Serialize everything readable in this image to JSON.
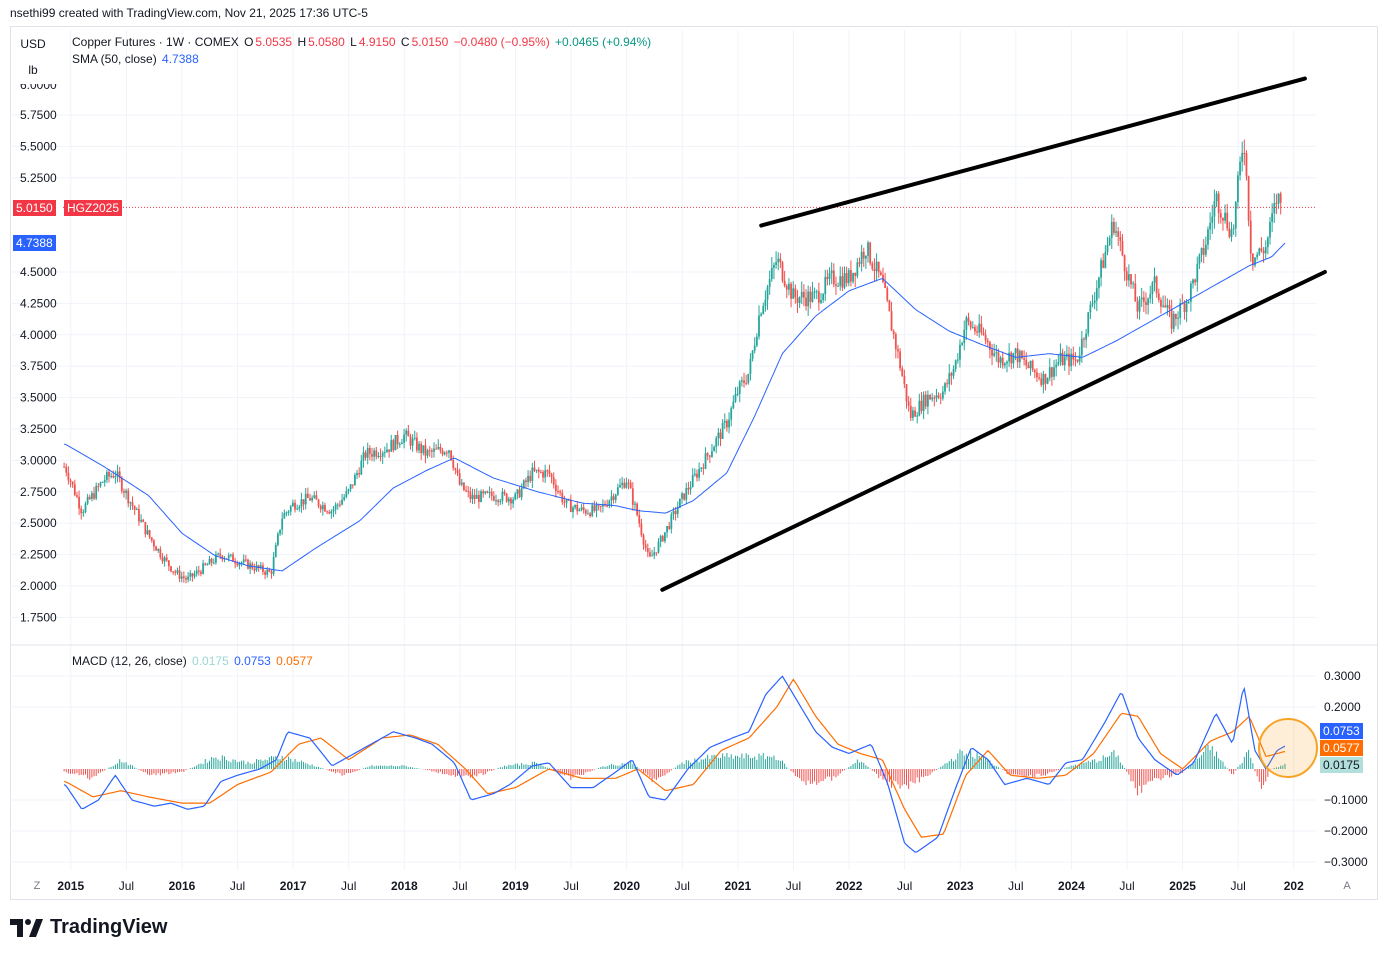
{
  "header": {
    "text": "nsethi99 created with TradingView.com, Nov 21, 2025 17:36 UTC-5"
  },
  "units": {
    "currency": "USD",
    "unit": "lb"
  },
  "legend": {
    "symbol": "Copper Futures · 1W · COMEX",
    "o_label": "O",
    "o_value": "5.0535",
    "h_label": "H",
    "h_value": "5.0580",
    "l_label": "L",
    "l_value": "4.9150",
    "c_label": "C",
    "c_value": "5.0150",
    "change": "−0.0480 (−0.95%)",
    "extra": "+0.0465 (+0.94%)",
    "sma_label": "SMA (50, close)",
    "sma_value": "4.7388"
  },
  "macd_legend": {
    "label": "MACD (12, 26, close)",
    "hist_value": "0.0175",
    "macd_value": "0.0753",
    "signal_value": "0.0577"
  },
  "price_tags": {
    "last": "5.0150",
    "symbol": "HGZ2025",
    "sma": "4.7388",
    "macd": "0.0753",
    "signal": "0.0577",
    "hist": "0.0175"
  },
  "bottom_left_btn": "Z",
  "bottom_right_btn": "A",
  "footer": {
    "logo_text": "TradingView"
  },
  "colors": {
    "up": "#26a69a",
    "down": "#ef5350",
    "sma": "#2962ff",
    "macd": "#2962ff",
    "signal": "#ff6d00",
    "hist_up": "#26a69a",
    "hist_down": "#ef5350",
    "trendline": "#000000",
    "last_price": "#f23645",
    "highlight": "#f7a325"
  },
  "chart_data": {
    "type": "candlestick",
    "title": "Copper Futures · 1W · COMEX",
    "price_axis": {
      "ticks": [
        "5.7500",
        "5.5000",
        "5.2500",
        "4.5000",
        "4.2500",
        "4.0000",
        "3.7500",
        "3.5000",
        "3.2500",
        "3.0000",
        "2.7500",
        "2.5000",
        "2.2500",
        "2.0000",
        "1.7500"
      ],
      "ylim": [
        1.62,
        6.0
      ]
    },
    "macd_axis": {
      "ticks": [
        "0.3000",
        "0.2000",
        "-0.1000",
        "-0.2000",
        "-0.3000"
      ],
      "ylim": [
        -0.32,
        0.34
      ]
    },
    "time_axis": {
      "labels": [
        "2015",
        "Jul",
        "2016",
        "Jul",
        "2017",
        "Jul",
        "2018",
        "Jul",
        "2019",
        "Jul",
        "2020",
        "Jul",
        "2021",
        "Jul",
        "2022",
        "Jul",
        "2023",
        "Jul",
        "2024",
        "Jul",
        "2025",
        "Jul",
        "202"
      ],
      "xlim": [
        2014.93,
        2026.2
      ]
    },
    "price_anchors": [
      [
        2014.95,
        2.95
      ],
      [
        2015.1,
        2.6
      ],
      [
        2015.3,
        2.85
      ],
      [
        2015.4,
        2.9
      ],
      [
        2015.55,
        2.65
      ],
      [
        2015.7,
        2.4
      ],
      [
        2015.85,
        2.2
      ],
      [
        2015.95,
        2.1
      ],
      [
        2016.05,
        2.05
      ],
      [
        2016.2,
        2.15
      ],
      [
        2016.35,
        2.25
      ],
      [
        2016.5,
        2.2
      ],
      [
        2016.65,
        2.15
      ],
      [
        2016.8,
        2.1
      ],
      [
        2016.9,
        2.55
      ],
      [
        2017.0,
        2.65
      ],
      [
        2017.15,
        2.7
      ],
      [
        2017.35,
        2.6
      ],
      [
        2017.5,
        2.75
      ],
      [
        2017.65,
        3.05
      ],
      [
        2017.85,
        3.1
      ],
      [
        2018.0,
        3.2
      ],
      [
        2018.2,
        3.05
      ],
      [
        2018.4,
        3.1
      ],
      [
        2018.5,
        2.8
      ],
      [
        2018.6,
        2.7
      ],
      [
        2018.8,
        2.72
      ],
      [
        2019.0,
        2.7
      ],
      [
        2019.15,
        2.9
      ],
      [
        2019.3,
        2.9
      ],
      [
        2019.45,
        2.65
      ],
      [
        2019.6,
        2.6
      ],
      [
        2019.75,
        2.6
      ],
      [
        2019.9,
        2.75
      ],
      [
        2020.0,
        2.85
      ],
      [
        2020.1,
        2.55
      ],
      [
        2020.2,
        2.2
      ],
      [
        2020.3,
        2.35
      ],
      [
        2020.5,
        2.7
      ],
      [
        2020.7,
        3.0
      ],
      [
        2020.9,
        3.3
      ],
      [
        2021.0,
        3.55
      ],
      [
        2021.1,
        3.7
      ],
      [
        2021.2,
        4.2
      ],
      [
        2021.35,
        4.6
      ],
      [
        2021.5,
        4.3
      ],
      [
        2021.7,
        4.3
      ],
      [
        2021.85,
        4.45
      ],
      [
        2022.0,
        4.45
      ],
      [
        2022.15,
        4.7
      ],
      [
        2022.3,
        4.4
      ],
      [
        2022.45,
        3.8
      ],
      [
        2022.55,
        3.35
      ],
      [
        2022.7,
        3.5
      ],
      [
        2022.85,
        3.55
      ],
      [
        2022.95,
        3.75
      ],
      [
        2023.05,
        4.1
      ],
      [
        2023.2,
        4.0
      ],
      [
        2023.35,
        3.8
      ],
      [
        2023.5,
        3.85
      ],
      [
        2023.6,
        3.75
      ],
      [
        2023.75,
        3.65
      ],
      [
        2023.9,
        3.8
      ],
      [
        2024.05,
        3.8
      ],
      [
        2024.2,
        4.3
      ],
      [
        2024.38,
        4.9
      ],
      [
        2024.5,
        4.5
      ],
      [
        2024.6,
        4.2
      ],
      [
        2024.75,
        4.4
      ],
      [
        2024.9,
        4.1
      ],
      [
        2025.05,
        4.3
      ],
      [
        2025.2,
        4.7
      ],
      [
        2025.3,
        5.1
      ],
      [
        2025.45,
        4.8
      ],
      [
        2025.55,
        5.6
      ],
      [
        2025.62,
        4.6
      ],
      [
        2025.75,
        4.7
      ],
      [
        2025.85,
        5.1
      ],
      [
        2025.9,
        5.015
      ]
    ],
    "sma_anchors": [
      [
        2014.95,
        3.13
      ],
      [
        2015.3,
        2.95
      ],
      [
        2015.7,
        2.72
      ],
      [
        2016.0,
        2.42
      ],
      [
        2016.3,
        2.24
      ],
      [
        2016.6,
        2.16
      ],
      [
        2016.9,
        2.12
      ],
      [
        2017.2,
        2.3
      ],
      [
        2017.6,
        2.52
      ],
      [
        2017.9,
        2.78
      ],
      [
        2018.2,
        2.92
      ],
      [
        2018.45,
        3.02
      ],
      [
        2018.8,
        2.86
      ],
      [
        2019.2,
        2.75
      ],
      [
        2019.6,
        2.66
      ],
      [
        2019.9,
        2.64
      ],
      [
        2020.1,
        2.6
      ],
      [
        2020.35,
        2.58
      ],
      [
        2020.6,
        2.68
      ],
      [
        2020.9,
        2.9
      ],
      [
        2021.15,
        3.35
      ],
      [
        2021.4,
        3.85
      ],
      [
        2021.7,
        4.15
      ],
      [
        2022.0,
        4.35
      ],
      [
        2022.3,
        4.45
      ],
      [
        2022.6,
        4.2
      ],
      [
        2022.9,
        4.03
      ],
      [
        2023.2,
        3.92
      ],
      [
        2023.5,
        3.82
      ],
      [
        2023.8,
        3.85
      ],
      [
        2024.1,
        3.82
      ],
      [
        2024.4,
        3.95
      ],
      [
        2024.7,
        4.1
      ],
      [
        2025.0,
        4.25
      ],
      [
        2025.3,
        4.4
      ],
      [
        2025.6,
        4.55
      ],
      [
        2025.8,
        4.62
      ],
      [
        2025.93,
        4.7388
      ]
    ],
    "macd_anchors": [
      [
        2014.95,
        -0.05
      ],
      [
        2015.1,
        -0.13
      ],
      [
        2015.25,
        -0.1
      ],
      [
        2015.4,
        -0.02
      ],
      [
        2015.55,
        -0.1
      ],
      [
        2015.75,
        -0.12
      ],
      [
        2015.9,
        -0.11
      ],
      [
        2016.05,
        -0.13
      ],
      [
        2016.2,
        -0.12
      ],
      [
        2016.35,
        -0.04
      ],
      [
        2016.5,
        -0.02
      ],
      [
        2016.7,
        0.0
      ],
      [
        2016.85,
        0.03
      ],
      [
        2016.95,
        0.12
      ],
      [
        2017.15,
        0.1
      ],
      [
        2017.35,
        0.01
      ],
      [
        2017.55,
        0.05
      ],
      [
        2017.75,
        0.09
      ],
      [
        2017.9,
        0.12
      ],
      [
        2018.1,
        0.1
      ],
      [
        2018.25,
        0.08
      ],
      [
        2018.45,
        0.02
      ],
      [
        2018.6,
        -0.1
      ],
      [
        2018.8,
        -0.08
      ],
      [
        2018.95,
        -0.05
      ],
      [
        2019.15,
        0.01
      ],
      [
        2019.3,
        0.02
      ],
      [
        2019.5,
        -0.06
      ],
      [
        2019.7,
        -0.06
      ],
      [
        2019.9,
        -0.01
      ],
      [
        2020.05,
        0.03
      ],
      [
        2020.2,
        -0.09
      ],
      [
        2020.35,
        -0.1
      ],
      [
        2020.55,
        0.0
      ],
      [
        2020.75,
        0.07
      ],
      [
        2020.95,
        0.1
      ],
      [
        2021.1,
        0.12
      ],
      [
        2021.25,
        0.24
      ],
      [
        2021.4,
        0.3
      ],
      [
        2021.55,
        0.21
      ],
      [
        2021.7,
        0.12
      ],
      [
        2021.85,
        0.07
      ],
      [
        2022.0,
        0.05
      ],
      [
        2022.2,
        0.08
      ],
      [
        2022.35,
        -0.05
      ],
      [
        2022.5,
        -0.24
      ],
      [
        2022.6,
        -0.27
      ],
      [
        2022.8,
        -0.22
      ],
      [
        2022.95,
        -0.07
      ],
      [
        2023.1,
        0.07
      ],
      [
        2023.25,
        0.03
      ],
      [
        2023.4,
        -0.05
      ],
      [
        2023.6,
        -0.03
      ],
      [
        2023.8,
        -0.05
      ],
      [
        2023.95,
        0.02
      ],
      [
        2024.1,
        0.03
      ],
      [
        2024.3,
        0.15
      ],
      [
        2024.45,
        0.25
      ],
      [
        2024.6,
        0.1
      ],
      [
        2024.75,
        0.03
      ],
      [
        2024.95,
        -0.02
      ],
      [
        2025.1,
        0.02
      ],
      [
        2025.3,
        0.18
      ],
      [
        2025.45,
        0.08
      ],
      [
        2025.55,
        0.27
      ],
      [
        2025.65,
        0.06
      ],
      [
        2025.75,
        0.0
      ],
      [
        2025.85,
        0.06
      ],
      [
        2025.93,
        0.0753
      ]
    ],
    "signal_anchors": [
      [
        2014.95,
        -0.04
      ],
      [
        2015.2,
        -0.09
      ],
      [
        2015.45,
        -0.07
      ],
      [
        2015.7,
        -0.09
      ],
      [
        2016.0,
        -0.11
      ],
      [
        2016.25,
        -0.11
      ],
      [
        2016.5,
        -0.05
      ],
      [
        2016.8,
        -0.01
      ],
      [
        2017.05,
        0.08
      ],
      [
        2017.25,
        0.1
      ],
      [
        2017.5,
        0.03
      ],
      [
        2017.8,
        0.1
      ],
      [
        2018.05,
        0.11
      ],
      [
        2018.3,
        0.08
      ],
      [
        2018.55,
        0.0
      ],
      [
        2018.75,
        -0.08
      ],
      [
        2019.0,
        -0.06
      ],
      [
        2019.3,
        0.0
      ],
      [
        2019.6,
        -0.03
      ],
      [
        2019.9,
        -0.03
      ],
      [
        2020.1,
        0.0
      ],
      [
        2020.35,
        -0.07
      ],
      [
        2020.6,
        -0.05
      ],
      [
        2020.85,
        0.06
      ],
      [
        2021.1,
        0.1
      ],
      [
        2021.35,
        0.2
      ],
      [
        2021.5,
        0.29
      ],
      [
        2021.7,
        0.17
      ],
      [
        2021.9,
        0.08
      ],
      [
        2022.1,
        0.05
      ],
      [
        2022.3,
        0.03
      ],
      [
        2022.5,
        -0.13
      ],
      [
        2022.65,
        -0.22
      ],
      [
        2022.85,
        -0.21
      ],
      [
        2023.05,
        -0.02
      ],
      [
        2023.25,
        0.06
      ],
      [
        2023.45,
        -0.02
      ],
      [
        2023.7,
        -0.03
      ],
      [
        2023.95,
        -0.02
      ],
      [
        2024.2,
        0.05
      ],
      [
        2024.45,
        0.18
      ],
      [
        2024.6,
        0.17
      ],
      [
        2024.8,
        0.05
      ],
      [
        2025.0,
        0.0
      ],
      [
        2025.25,
        0.09
      ],
      [
        2025.45,
        0.12
      ],
      [
        2025.6,
        0.17
      ],
      [
        2025.75,
        0.04
      ],
      [
        2025.93,
        0.0577
      ]
    ],
    "hist_anchors": [
      [
        2014.95,
        -0.01
      ],
      [
        2015.2,
        -0.03
      ],
      [
        2015.45,
        0.03
      ],
      [
        2015.7,
        -0.02
      ],
      [
        2016.0,
        -0.01
      ],
      [
        2016.3,
        0.04
      ],
      [
        2016.6,
        0.02
      ],
      [
        2016.9,
        0.04
      ],
      [
        2017.2,
        0.01
      ],
      [
        2017.45,
        -0.02
      ],
      [
        2017.7,
        0.01
      ],
      [
        2018.0,
        0.01
      ],
      [
        2018.3,
        -0.01
      ],
      [
        2018.6,
        -0.03
      ],
      [
        2018.9,
        0.01
      ],
      [
        2019.2,
        0.02
      ],
      [
        2019.5,
        -0.03
      ],
      [
        2019.8,
        0.01
      ],
      [
        2020.05,
        0.02
      ],
      [
        2020.25,
        -0.04
      ],
      [
        2020.5,
        0.02
      ],
      [
        2020.8,
        0.04
      ],
      [
        2021.1,
        0.04
      ],
      [
        2021.35,
        0.04
      ],
      [
        2021.6,
        -0.05
      ],
      [
        2021.85,
        -0.03
      ],
      [
        2022.1,
        0.03
      ],
      [
        2022.35,
        -0.05
      ],
      [
        2022.55,
        -0.05
      ],
      [
        2022.8,
        0.0
      ],
      [
        2023.0,
        0.05
      ],
      [
        2023.2,
        0.04
      ],
      [
        2023.45,
        -0.02
      ],
      [
        2023.75,
        -0.02
      ],
      [
        2024.0,
        0.01
      ],
      [
        2024.25,
        0.03
      ],
      [
        2024.4,
        0.05
      ],
      [
        2024.6,
        -0.07
      ],
      [
        2024.8,
        -0.03
      ],
      [
        2025.0,
        -0.01
      ],
      [
        2025.25,
        0.07
      ],
      [
        2025.45,
        -0.02
      ],
      [
        2025.6,
        0.06
      ],
      [
        2025.7,
        -0.07
      ],
      [
        2025.8,
        0.0
      ],
      [
        2025.93,
        0.0175
      ]
    ],
    "trendlines": [
      {
        "from": [
          2021.21,
          4.87
        ],
        "to": [
          2026.1,
          6.04
        ]
      },
      {
        "from": [
          2020.32,
          1.97
        ],
        "to": [
          2026.28,
          4.5
        ]
      }
    ],
    "last_price": 5.015,
    "sma_last": 4.7388
  }
}
